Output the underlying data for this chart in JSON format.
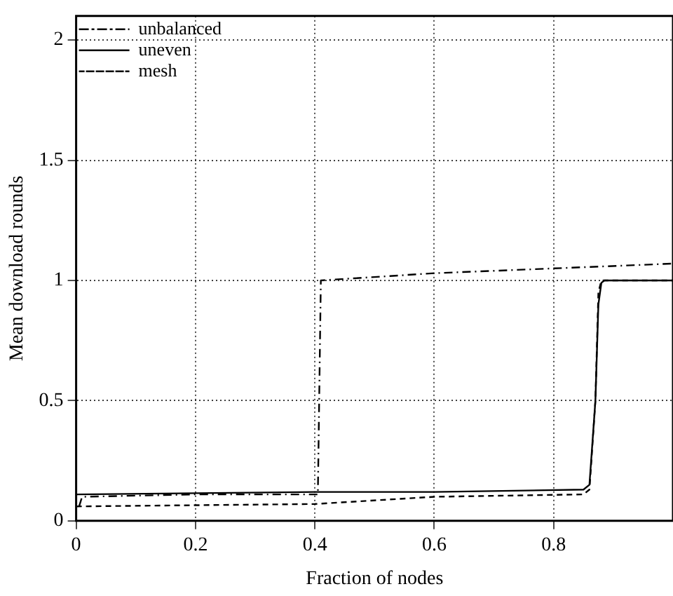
{
  "chart_data": {
    "type": "line",
    "xlabel": "Fraction of nodes",
    "ylabel": "Mean download rounds",
    "xlim": [
      0,
      1
    ],
    "xticks": [
      0,
      0.2,
      0.4,
      0.6,
      0.8
    ],
    "ylim": [
      0,
      2.1
    ],
    "yticks": [
      0,
      0.5,
      1,
      1.5,
      2
    ],
    "grid": true,
    "legend": "top left",
    "marker": "none",
    "series": [
      {
        "name": "unbalanced",
        "color": "#000000",
        "line_style": "dashdot",
        "x": [
          0.005,
          0.01,
          0.2,
          0.405,
          0.41,
          0.6,
          0.8,
          1.0
        ],
        "values": [
          0.06,
          0.1,
          0.11,
          0.11,
          1.0,
          1.03,
          1.05,
          1.07
        ]
      },
      {
        "name": "uneven",
        "color": "#000000",
        "line_style": "solid",
        "x": [
          0.0,
          0.2,
          0.4,
          0.6,
          0.85,
          0.86,
          0.87,
          0.875,
          0.88,
          0.885,
          1.0
        ],
        "values": [
          0.11,
          0.115,
          0.12,
          0.12,
          0.13,
          0.15,
          0.5,
          0.9,
          0.99,
          1.0,
          1.0
        ]
      },
      {
        "name": "mesh",
        "color": "#000000",
        "line_style": "dashed",
        "x": [
          0.0,
          0.2,
          0.4,
          0.6,
          0.85,
          0.86,
          0.87,
          0.875,
          0.88,
          1.0
        ],
        "values": [
          0.06,
          0.065,
          0.07,
          0.1,
          0.11,
          0.13,
          0.5,
          0.95,
          1.0,
          1.0
        ]
      }
    ]
  }
}
